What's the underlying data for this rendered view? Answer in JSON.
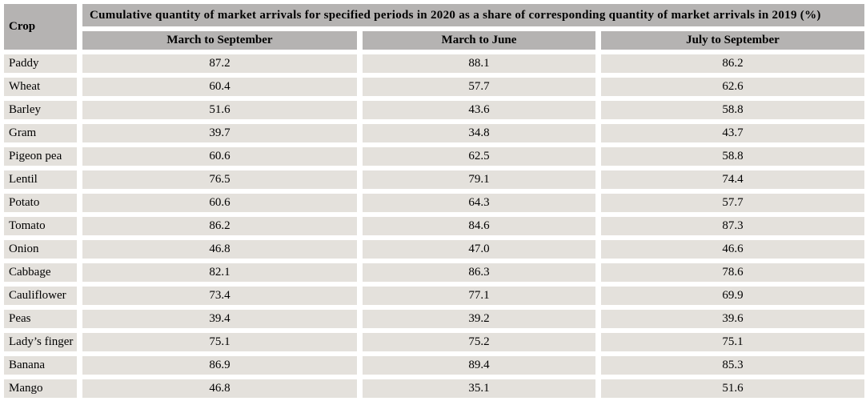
{
  "colors": {
    "page_bg": "#ffffff",
    "header_bg": "#b5b3b2",
    "cell_bg": "#e4e1dc",
    "text": "#000000"
  },
  "table": {
    "corner_header": "Crop",
    "main_header": "Cumulative quantity of market arrivals for specified periods in 2020 as a share of corresponding quantity of market arrivals in 2019 (%)",
    "period_headers": [
      "March to September",
      "March to June",
      "July to September"
    ],
    "rows": [
      {
        "crop": "Paddy",
        "values": [
          "87.2",
          "88.1",
          "86.2"
        ]
      },
      {
        "crop": "Wheat",
        "values": [
          "60.4",
          "57.7",
          "62.6"
        ]
      },
      {
        "crop": "Barley",
        "values": [
          "51.6",
          "43.6",
          "58.8"
        ]
      },
      {
        "crop": "Gram",
        "values": [
          "39.7",
          "34.8",
          "43.7"
        ]
      },
      {
        "crop": "Pigeon pea",
        "values": [
          "60.6",
          "62.5",
          "58.8"
        ]
      },
      {
        "crop": "Lentil",
        "values": [
          "76.5",
          "79.1",
          "74.4"
        ]
      },
      {
        "crop": "Potato",
        "values": [
          "60.6",
          "64.3",
          "57.7"
        ]
      },
      {
        "crop": "Tomato",
        "values": [
          "86.2",
          "84.6",
          "87.3"
        ]
      },
      {
        "crop": "Onion",
        "values": [
          "46.8",
          "47.0",
          "46.6"
        ]
      },
      {
        "crop": "Cabbage",
        "values": [
          "82.1",
          "86.3",
          "78.6"
        ]
      },
      {
        "crop": "Cauliflower",
        "values": [
          "73.4",
          "77.1",
          "69.9"
        ]
      },
      {
        "crop": "Peas",
        "values": [
          "39.4",
          "39.2",
          "39.6"
        ]
      },
      {
        "crop": "Lady’s finger",
        "values": [
          "75.1",
          "75.2",
          "75.1"
        ]
      },
      {
        "crop": "Banana",
        "values": [
          "86.9",
          "89.4",
          "85.3"
        ]
      },
      {
        "crop": "Mango",
        "values": [
          "46.8",
          "35.1",
          "51.6"
        ]
      }
    ]
  },
  "chart_data": {
    "type": "table",
    "title": "Cumulative quantity of market arrivals for specified periods in 2020 as a share of corresponding quantity of market arrivals in 2019 (%)",
    "row_header": "Crop",
    "columns": [
      "March to September",
      "March to June",
      "July to September"
    ],
    "rows": [
      {
        "crop": "Paddy",
        "values": [
          87.2,
          88.1,
          86.2
        ]
      },
      {
        "crop": "Wheat",
        "values": [
          60.4,
          57.7,
          62.6
        ]
      },
      {
        "crop": "Barley",
        "values": [
          51.6,
          43.6,
          58.8
        ]
      },
      {
        "crop": "Gram",
        "values": [
          39.7,
          34.8,
          43.7
        ]
      },
      {
        "crop": "Pigeon pea",
        "values": [
          60.6,
          62.5,
          58.8
        ]
      },
      {
        "crop": "Lentil",
        "values": [
          76.5,
          79.1,
          74.4
        ]
      },
      {
        "crop": "Potato",
        "values": [
          60.6,
          64.3,
          57.7
        ]
      },
      {
        "crop": "Tomato",
        "values": [
          86.2,
          84.6,
          87.3
        ]
      },
      {
        "crop": "Onion",
        "values": [
          46.8,
          47.0,
          46.6
        ]
      },
      {
        "crop": "Cabbage",
        "values": [
          82.1,
          86.3,
          78.6
        ]
      },
      {
        "crop": "Cauliflower",
        "values": [
          73.4,
          77.1,
          69.9
        ]
      },
      {
        "crop": "Peas",
        "values": [
          39.4,
          39.2,
          39.6
        ]
      },
      {
        "crop": "Lady’s finger",
        "values": [
          75.1,
          75.2,
          75.1
        ]
      },
      {
        "crop": "Banana",
        "values": [
          86.9,
          89.4,
          85.3
        ]
      },
      {
        "crop": "Mango",
        "values": [
          46.8,
          35.1,
          51.6
        ]
      }
    ]
  }
}
